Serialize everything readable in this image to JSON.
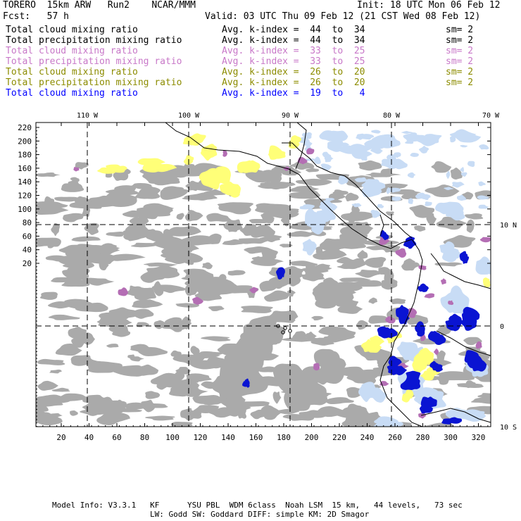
{
  "header": {
    "model": "TORERO  15km ARW   Run2    NCAR/MMM",
    "init": "Init: 18 UTC Mon 06 Feb 12",
    "fcst": "Fcst:   57 h",
    "valid": "Valid: 03 UTC Thu 09 Feb 12 (21 CST Wed 08 Feb 12)"
  },
  "legend": [
    {
      "name": "Total cloud mixing ratio",
      "index": "Avg. k-index =  44  to  34",
      "sm": "sm= 2",
      "color": "#000000"
    },
    {
      "name": "Total precipitation mixing ratio",
      "index": "Avg. k-index =  44  to  34",
      "sm": "sm= 2",
      "color": "#000000"
    },
    {
      "name": "Total cloud mixing ratio",
      "index": "Avg. k-index =  33  to  25",
      "sm": "sm= 2",
      "color": "#c878c8"
    },
    {
      "name": "Total precipitation mixing ratio",
      "index": "Avg. k-index =  33  to  25",
      "sm": "sm= 2",
      "color": "#c878c8"
    },
    {
      "name": "Total cloud mixing ratio",
      "index": "Avg. k-index =  26  to  20",
      "sm": "sm= 2",
      "color": "#8c8c00"
    },
    {
      "name": "Total precipitation mixing ratio",
      "index": "Avg. k-index =  26  to  20",
      "sm": "sm= 2",
      "color": "#8c8c00"
    },
    {
      "name": "Total cloud mixing ratio",
      "index": "Avg. k-index =  19  to   4",
      "sm": "",
      "color": "#0000ff"
    }
  ],
  "map": {
    "lon_labels": [
      "110 W",
      "100 W",
      "90 W",
      "80 W",
      "70 W"
    ],
    "lat_labels": [
      "10 N",
      "0",
      "10 S"
    ],
    "y_ticks": [
      "220",
      "200",
      "180",
      "160",
      "140",
      "120",
      "100",
      "80",
      "60",
      "40",
      "20"
    ],
    "x_ticks": [
      "20",
      "40",
      "60",
      "80",
      "100",
      "120",
      "140",
      "160",
      "180",
      "200",
      "220",
      "240",
      "260",
      "280",
      "300",
      "320"
    ],
    "colors": {
      "gray_cloud": "#aaaaaa",
      "yellow_cloud": "#ffff78",
      "purple_cloud": "#b46eb4",
      "light_blue_cloud": "#c8dcf5",
      "blue_cloud": "#0a14d2",
      "coastline": "#000000"
    }
  },
  "footer": {
    "line1": "Model Info: V3.3.1   KF      YSU PBL  WDM 6class  Noah LSM  15 km,   44 levels,   73 sec",
    "line2": "LW: Godd SW: Goddard DIFF: simple KM: 2D Smagor"
  }
}
